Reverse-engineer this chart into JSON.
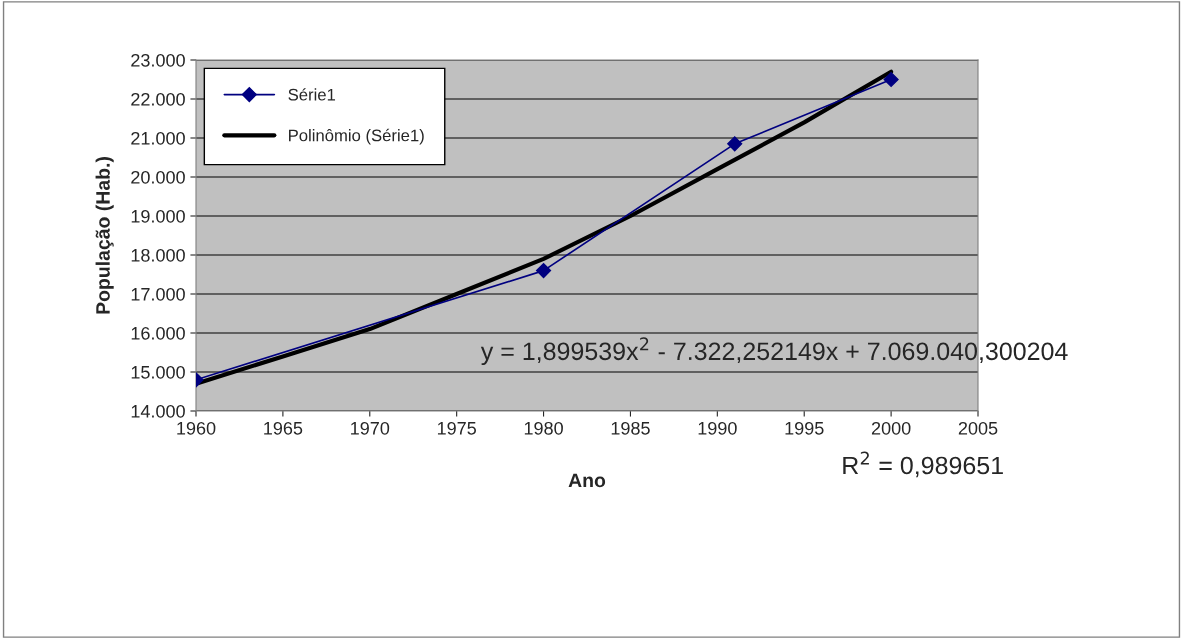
{
  "chart_data": {
    "type": "line",
    "xlabel": "Ano",
    "ylabel": "População (Hab.)",
    "xlim": [
      1960,
      2005
    ],
    "xticks": [
      1960,
      1965,
      1970,
      1975,
      1980,
      1985,
      1990,
      1995,
      2000,
      2005
    ],
    "ylim": [
      14000,
      23000
    ],
    "yticks": [
      {
        "value": 14000,
        "label": "14.000"
      },
      {
        "value": 15000,
        "label": "15.000"
      },
      {
        "value": 16000,
        "label": "16.000"
      },
      {
        "value": 17000,
        "label": "17.000"
      },
      {
        "value": 18000,
        "label": "18.000"
      },
      {
        "value": 19000,
        "label": "19.000"
      },
      {
        "value": 20000,
        "label": "20.000"
      },
      {
        "value": 21000,
        "label": "21.000"
      },
      {
        "value": 22000,
        "label": "22.000"
      },
      {
        "value": 23000,
        "label": "23.000"
      }
    ],
    "grid": "y",
    "legend": "top left",
    "series": [
      {
        "name": "Série1",
        "color": "#000080",
        "marker": "diamond",
        "x": [
          1960,
          1980,
          1991,
          2000
        ],
        "values": [
          14800,
          17600,
          20850,
          22500
        ]
      },
      {
        "name": "Polinômio (Série1)",
        "color": "#000000",
        "marker": "none",
        "x": [
          1960,
          1965,
          1970,
          1975,
          1980,
          1985,
          1990,
          1995,
          2000
        ],
        "values": [
          14700,
          15400,
          16100,
          17000,
          17900,
          19000,
          20200,
          21400,
          22700
        ]
      }
    ],
    "annotations": [
      "y = 1,899539x$^{2}$ - 7.322,252149x + 7.069.040,300204",
      "R$^{2}$ = 0,989651"
    ]
  }
}
